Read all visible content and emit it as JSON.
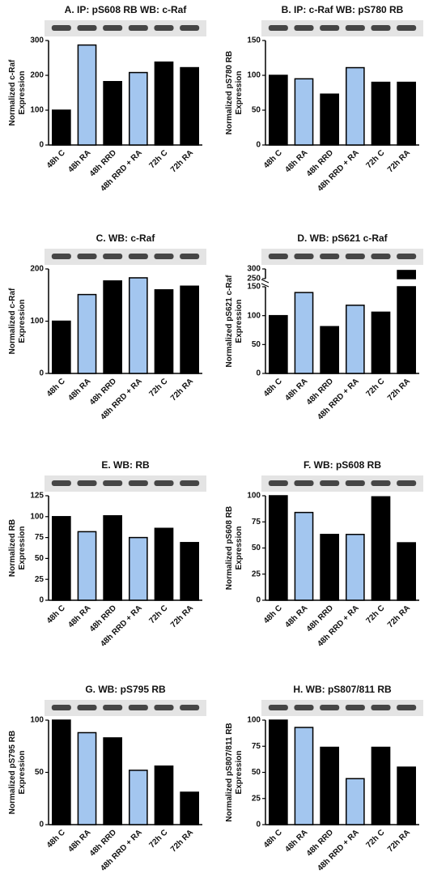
{
  "chart_data": [
    {
      "type": "bar",
      "title": "A. IP: pS608 RB WB: c-Raf",
      "ylabel": [
        "Normalized c-Raf",
        "Expression"
      ],
      "categories": [
        "48h C",
        "48h RA",
        "48h RRD",
        "48h RRD + RA",
        "72h C",
        "72h RA"
      ],
      "values": [
        100,
        287,
        182,
        208,
        238,
        222
      ],
      "colors": [
        "#000000",
        "#a3c6ef",
        "#000000",
        "#a3c6ef",
        "#000000",
        "#000000"
      ],
      "ylim": [
        0,
        300
      ],
      "yticks": [
        0,
        100,
        200,
        300
      ]
    },
    {
      "type": "bar",
      "title": "B. IP: c-Raf WB: pS780 RB",
      "ylabel": [
        "Normalized pS780 RB",
        "Expression"
      ],
      "categories": [
        "48h C",
        "48h RA",
        "48h RRD",
        "48h RRD + RA",
        "72h C",
        "72h RA"
      ],
      "values": [
        100,
        95,
        73,
        111,
        90,
        90
      ],
      "colors": [
        "#000000",
        "#a3c6ef",
        "#000000",
        "#a3c6ef",
        "#000000",
        "#000000"
      ],
      "ylim": [
        0,
        150
      ],
      "yticks": [
        0,
        50,
        100,
        150
      ]
    },
    {
      "type": "bar",
      "title": "C. WB: c-Raf",
      "ylabel": [
        "Normalized c-Raf",
        "Expression"
      ],
      "categories": [
        "48h C",
        "48h RA",
        "48h RRD",
        "48h RRD + RA",
        "72h C",
        "72h RA"
      ],
      "values": [
        100,
        151,
        177,
        183,
        160,
        167
      ],
      "colors": [
        "#000000",
        "#a3c6ef",
        "#000000",
        "#a3c6ef",
        "#000000",
        "#000000"
      ],
      "ylim": [
        0,
        200
      ],
      "yticks": [
        0,
        100,
        200
      ]
    },
    {
      "type": "bar",
      "title": "D. WB: pS621 c-Raf",
      "ylabel": [
        "Normalized pS621 c-Raf",
        "Expression"
      ],
      "categories": [
        "48h C",
        "48h RA",
        "48h RRD",
        "48h RRD + RA",
        "72h C",
        "72h RA"
      ],
      "values": [
        100,
        140,
        81,
        118,
        106,
        292
      ],
      "colors": [
        "#000000",
        "#a3c6ef",
        "#000000",
        "#a3c6ef",
        "#000000",
        "#000000"
      ],
      "ylim": [
        0,
        300
      ],
      "ybreak": [
        150,
        250
      ],
      "yticks": [
        0,
        50,
        100,
        150,
        250,
        300
      ]
    },
    {
      "type": "bar",
      "title": "E. WB: RB",
      "ylabel": [
        "Normalized RB",
        "Expression"
      ],
      "categories": [
        "48h C",
        "48h RA",
        "48h RRD",
        "48h RRD + RA",
        "72h C",
        "72h RA"
      ],
      "values": [
        100,
        82,
        101,
        75,
        86,
        69
      ],
      "colors": [
        "#000000",
        "#a3c6ef",
        "#000000",
        "#a3c6ef",
        "#000000",
        "#000000"
      ],
      "ylim": [
        0,
        125
      ],
      "yticks": [
        0,
        25,
        50,
        75,
        100,
        125
      ]
    },
    {
      "type": "bar",
      "title": "F. WB: pS608 RB",
      "ylabel": [
        "Normalized pS608 RB",
        "Expression"
      ],
      "categories": [
        "48h C",
        "48h RA",
        "48h RRD",
        "48h RRD + RA",
        "72h C",
        "72h RA"
      ],
      "values": [
        100,
        84,
        63,
        63,
        99,
        55
      ],
      "colors": [
        "#000000",
        "#a3c6ef",
        "#000000",
        "#a3c6ef",
        "#000000",
        "#000000"
      ],
      "ylim": [
        0,
        100
      ],
      "yticks": [
        0,
        25,
        50,
        75,
        100
      ]
    },
    {
      "type": "bar",
      "title": "G. WB: pS795 RB",
      "ylabel": [
        "Normalized pS795 RB",
        "Expression"
      ],
      "categories": [
        "48h C",
        "48h RA",
        "48h RRD",
        "48h RRD + RA",
        "72h C",
        "72h RA"
      ],
      "values": [
        100,
        88,
        83,
        52,
        56,
        31
      ],
      "colors": [
        "#000000",
        "#a3c6ef",
        "#000000",
        "#a3c6ef",
        "#000000",
        "#000000"
      ],
      "ylim": [
        0,
        100
      ],
      "yticks": [
        0,
        50,
        100
      ]
    },
    {
      "type": "bar",
      "title": "H. WB: pS807/811 RB",
      "ylabel": [
        "Normalized pS807/811 RB",
        "Expression"
      ],
      "categories": [
        "48h C",
        "48h RA",
        "48h RRD",
        "48h RRD + RA",
        "72h C",
        "72h RA"
      ],
      "values": [
        100,
        93,
        74,
        44,
        74,
        55
      ],
      "colors": [
        "#000000",
        "#a3c6ef",
        "#000000",
        "#a3c6ef",
        "#000000",
        "#000000"
      ],
      "ylim": [
        0,
        100
      ],
      "yticks": [
        0,
        25,
        50,
        75,
        100
      ]
    }
  ]
}
